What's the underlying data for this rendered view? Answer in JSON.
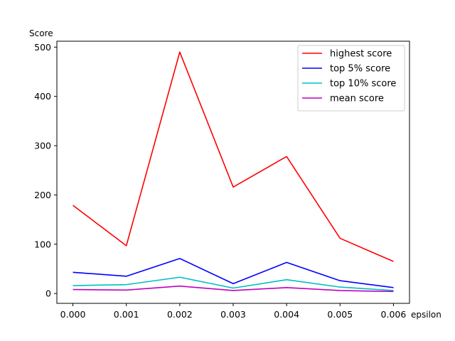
{
  "chart_data": {
    "type": "line",
    "xlabel": "epsilon",
    "ylabel": "Score",
    "x": [
      0.0,
      0.001,
      0.002,
      0.003,
      0.004,
      0.005,
      0.006
    ],
    "x_tick_labels": [
      "0.000",
      "0.001",
      "0.002",
      "0.003",
      "0.004",
      "0.005",
      "0.006"
    ],
    "xlim": [
      -0.0003,
      0.0063
    ],
    "y_ticks": [
      0,
      100,
      200,
      300,
      400,
      500
    ],
    "y_tick_labels": [
      "0",
      "100",
      "200",
      "300",
      "400",
      "500"
    ],
    "ylim": [
      -20,
      512
    ],
    "grid": false,
    "legend_position": "top-right",
    "series": [
      {
        "name": "highest score",
        "color": "#ff0000",
        "values": [
          179,
          97,
          490,
          216,
          278,
          112,
          65
        ]
      },
      {
        "name": "top 5% score",
        "color": "#0000ff",
        "values": [
          43,
          35,
          71,
          20,
          63,
          26,
          12
        ]
      },
      {
        "name": "top 10% score",
        "color": "#00bfbf",
        "values": [
          16,
          18,
          33,
          11,
          28,
          13,
          6
        ]
      },
      {
        "name": "mean score",
        "color": "#bf00bf",
        "values": [
          8,
          7,
          15,
          6,
          12,
          6,
          4
        ]
      }
    ]
  }
}
